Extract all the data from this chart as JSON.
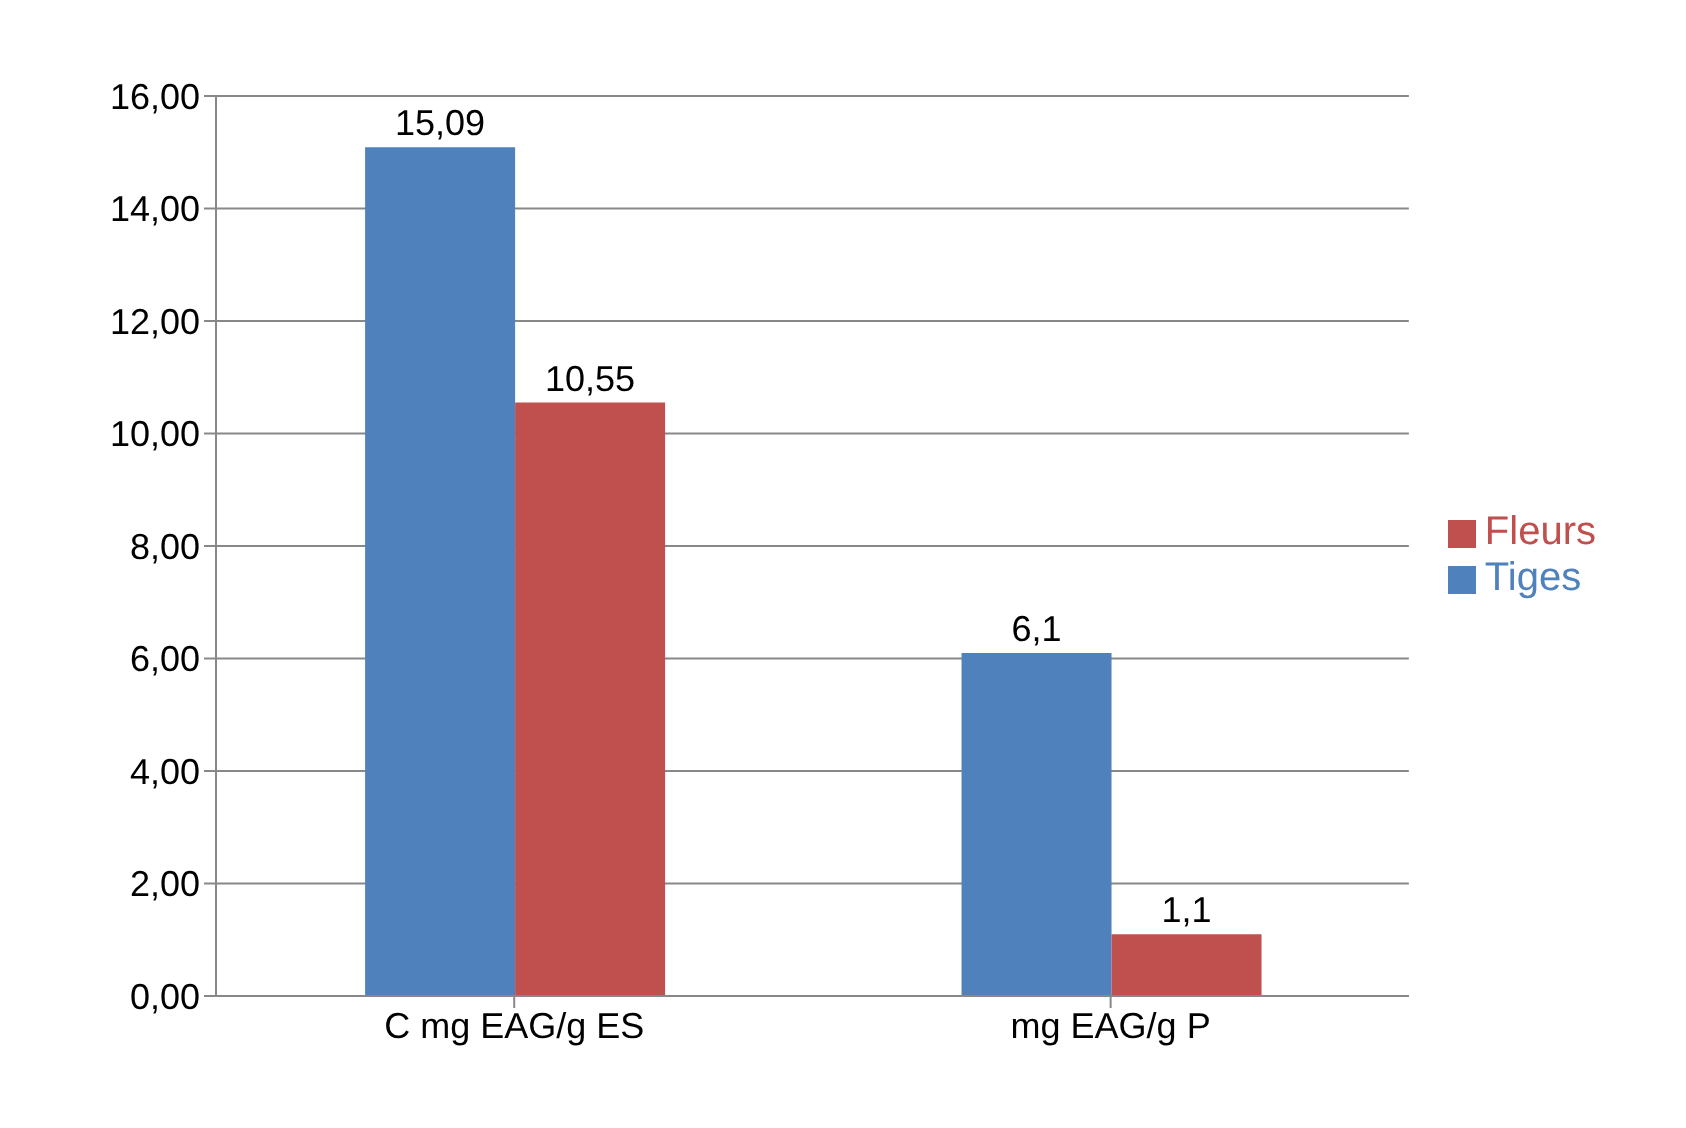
{
  "chart_data": {
    "type": "bar",
    "categories": [
      "C mg EAG/g ES",
      "mg EAG/g P"
    ],
    "series": [
      {
        "name": "Tiges",
        "color": "#4f81bd",
        "values": [
          15.09,
          6.1
        ],
        "value_labels": [
          "15,09",
          "6,1"
        ]
      },
      {
        "name": "Fleurs",
        "color": "#c0504d",
        "values": [
          10.55,
          1.1
        ],
        "value_labels": [
          "10,55",
          "1,1"
        ]
      }
    ],
    "ylim": [
      0,
      16
    ],
    "yticks": [
      {
        "value": 0,
        "label": "0,00"
      },
      {
        "value": 2,
        "label": "2,00"
      },
      {
        "value": 4,
        "label": "4,00"
      },
      {
        "value": 6,
        "label": "6,00"
      },
      {
        "value": 8,
        "label": "8,00"
      },
      {
        "value": 10,
        "label": "10,00"
      },
      {
        "value": 12,
        "label": "12,00"
      },
      {
        "value": 14,
        "label": "14,00"
      },
      {
        "value": 16,
        "label": "16,00"
      }
    ],
    "grid": "y",
    "legend": "right"
  }
}
